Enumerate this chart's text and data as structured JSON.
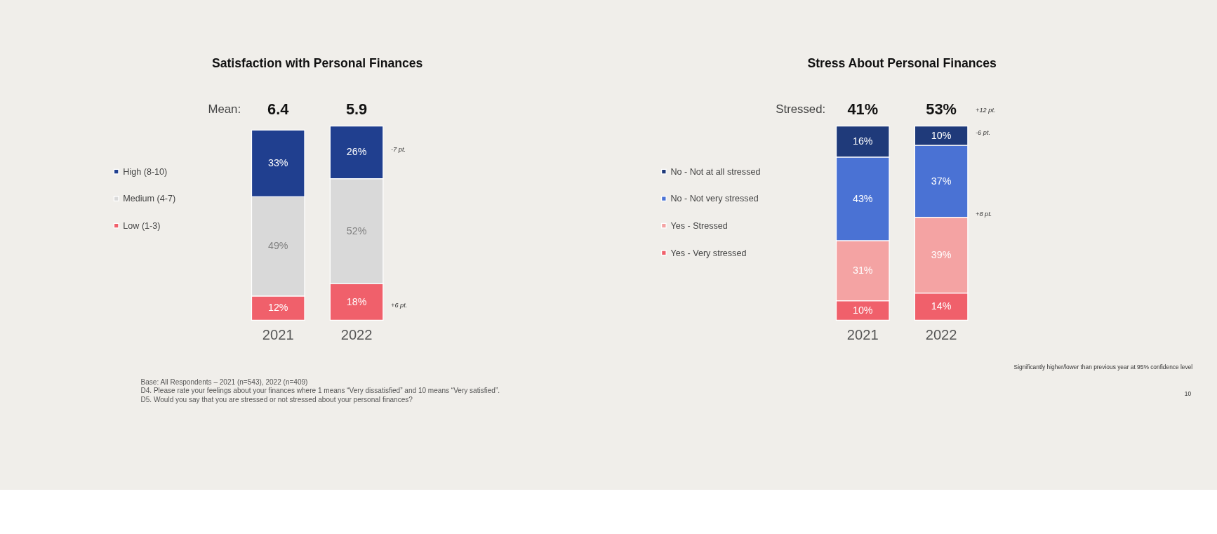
{
  "chart_data": [
    {
      "type": "bar",
      "title": "Satisfaction with Personal Finances",
      "categories": [
        "2021",
        "2022"
      ],
      "stacked": true,
      "legend": "left",
      "tick_labels": "x",
      "series": [
        {
          "name": "Low (1-3)",
          "color": "#f0606b",
          "values": [
            12,
            18
          ],
          "value_labels": [
            "12%",
            "18%"
          ]
        },
        {
          "name": "Medium (4-7)",
          "color": "#d9d9d9",
          "values": [
            49,
            52
          ],
          "value_labels": [
            "49%",
            "52%"
          ]
        },
        {
          "name": "High (8-10)",
          "color": "#203f8f",
          "values": [
            33,
            26
          ],
          "value_labels": [
            "33%",
            "26%"
          ]
        }
      ],
      "annotations": [
        "Mean:",
        "6.4",
        "5.9",
        "-7 pt.",
        "+6 pt.",
        "Base: All Respondents – 2021 (n=543), 2022 (n=409)",
        "D4. Please rate your feelings about your finances where 1 means “Very dissatisfied” and 10 means “Very satisfied”.",
        "D5. Would you say that you are stressed or not stressed about your personal finances?"
      ]
    },
    {
      "type": "bar",
      "title": "Stress About Personal Finances",
      "categories": [
        "2021",
        "2022"
      ],
      "stacked": true,
      "legend": "left",
      "tick_labels": "x",
      "series": [
        {
          "name": "Yes - Very stressed",
          "color": "#f0606b",
          "values": [
            10,
            14
          ],
          "value_labels": [
            "10%",
            "14%"
          ]
        },
        {
          "name": "Yes - Stressed",
          "color": "#f4a3a3",
          "values": [
            31,
            39
          ],
          "value_labels": [
            "31%",
            "39%"
          ]
        },
        {
          "name": "No - Not very stressed",
          "color": "#4a72d4",
          "values": [
            43,
            37
          ],
          "value_labels": [
            "43%",
            "37%"
          ]
        },
        {
          "name": "No - Not at all stressed",
          "color": "#1f3a7a",
          "values": [
            16,
            10
          ],
          "value_labels": [
            "16%",
            "10%"
          ]
        }
      ],
      "annotations": [
        "Stressed:",
        "41%",
        "53%",
        "+12 pt.",
        "-6 pt.",
        "+8 pt.",
        "Significantly higher/lower than previous year at 95% confidence level",
        "10"
      ]
    }
  ]
}
